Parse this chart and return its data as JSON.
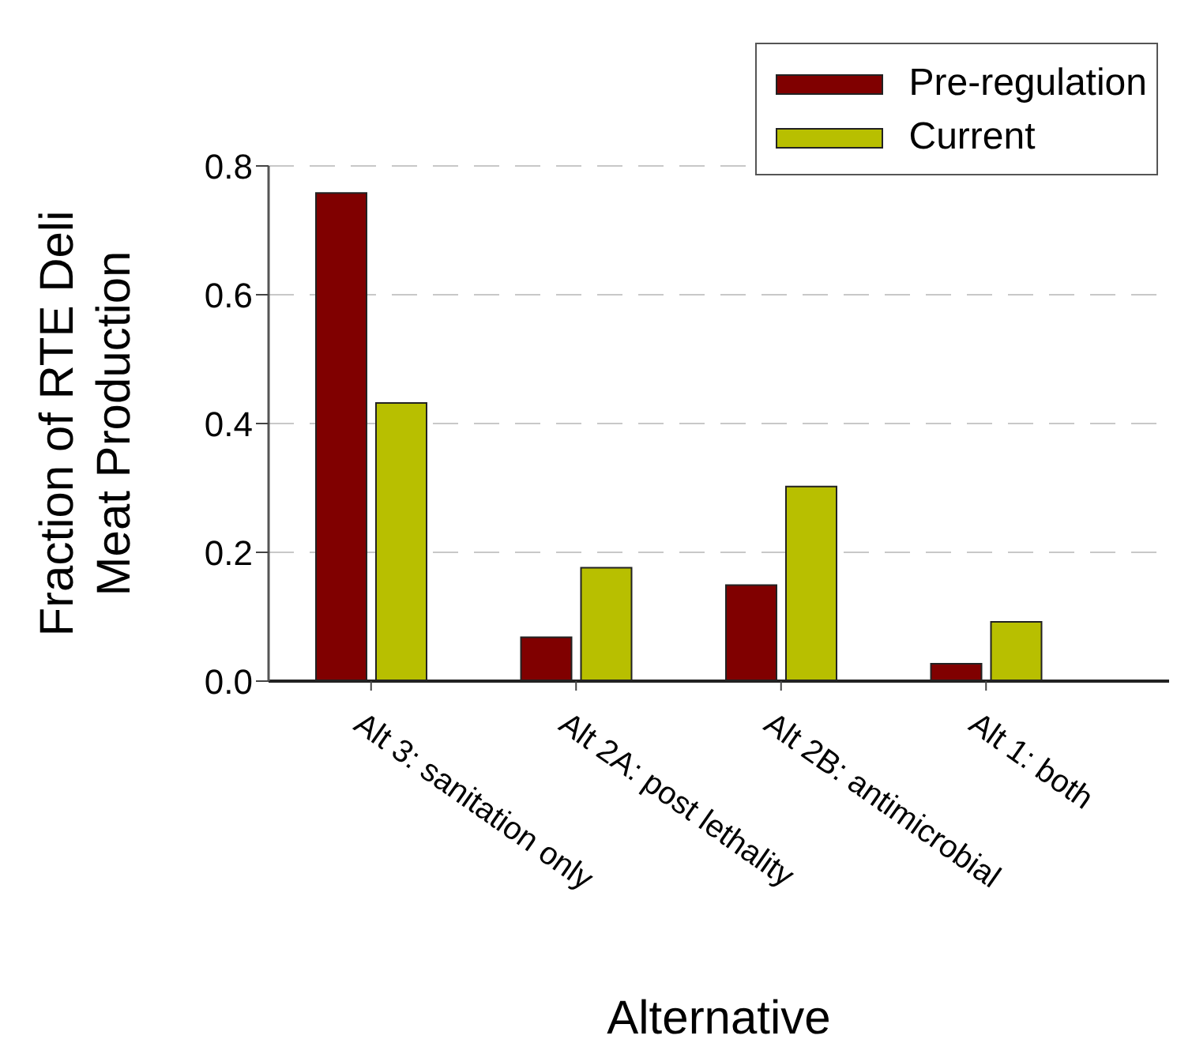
{
  "chart_data": {
    "type": "bar",
    "xlabel": "Alternative",
    "ylabel": "Fraction of RTE Deli Meat Production",
    "categories": [
      "Alt 3: sanitation only",
      "Alt 2A: post lethality",
      "Alt 2B: antimicrobial",
      "Alt 1: both"
    ],
    "series": [
      {
        "name": "Pre-regulation",
        "color": "#800000",
        "values": [
          0.758,
          0.068,
          0.149,
          0.027
        ]
      },
      {
        "name": "Current",
        "color": "#b8bf00",
        "values": [
          0.432,
          0.176,
          0.302,
          0.092
        ]
      }
    ],
    "ylim": [
      0,
      0.8
    ],
    "yticks": [
      {
        "value": 0,
        "label": "0.0"
      },
      {
        "value": 0.2,
        "label": "0.2"
      },
      {
        "value": 0.4,
        "label": "0.4"
      },
      {
        "value": 0.6,
        "label": "0.6"
      },
      {
        "value": 0.8,
        "label": "0.8"
      }
    ],
    "grid": "y",
    "legend": "top right"
  }
}
